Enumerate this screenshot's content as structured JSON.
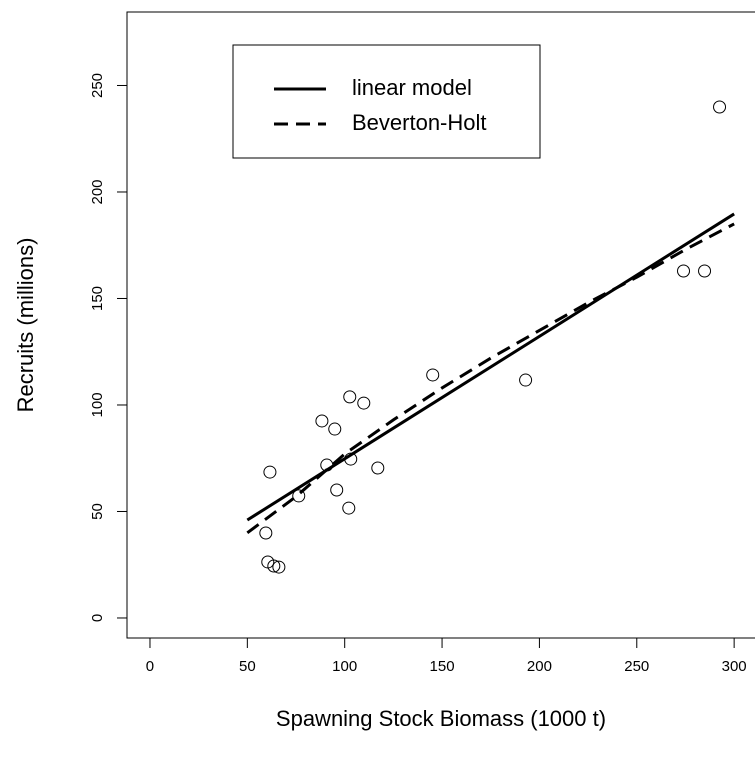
{
  "chart_data": {
    "type": "scatter",
    "x_label": "Spawning Stock Biomass (1000 t)",
    "y_label": "Recruits (millions)",
    "xlim": [
      -11.8,
      310.2
    ],
    "ylim": [
      -9.4,
      284.5
    ],
    "xticks": [
      0,
      50,
      100,
      150,
      200,
      250,
      300
    ],
    "yticks": [
      0,
      50,
      100,
      150,
      200,
      250
    ],
    "color": "#000000",
    "points": {
      "x": [
        59.5,
        61.6,
        60.5,
        63.6,
        66.2,
        76.4,
        88.3,
        90.8,
        94.9,
        95.9,
        102.1,
        102.6,
        103.1,
        109.8,
        117.0,
        145.2,
        192.9,
        274.0,
        284.8,
        292.5
      ],
      "y": [
        39.9,
        68.5,
        26.3,
        24.4,
        23.9,
        57.3,
        92.5,
        71.8,
        88.7,
        60.1,
        51.6,
        103.8,
        74.6,
        100.9,
        70.4,
        114.1,
        111.7,
        162.9,
        162.9,
        239.9
      ]
    },
    "series": [
      {
        "name": "linear model",
        "color": "#000000",
        "dashed": false,
        "x": [
          50,
          300
        ],
        "values": [
          46.0,
          189.7
        ]
      },
      {
        "name": "Beverton-Holt",
        "color": "#000000",
        "dashed": true,
        "x": [
          50,
          75,
          100,
          125,
          150,
          175,
          200,
          225,
          250,
          275,
          300
        ],
        "values": [
          40,
          57,
          77,
          93,
          108,
          122,
          135,
          148,
          160,
          173,
          185
        ]
      }
    ]
  }
}
